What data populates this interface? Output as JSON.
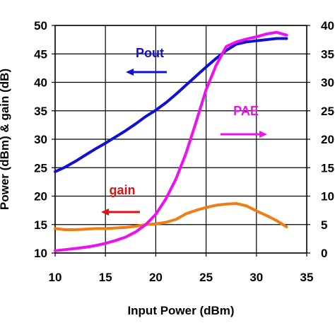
{
  "chart_data": {
    "type": "line",
    "xlabel": "Input Power (dBm)",
    "ylabel": "Power (dBm) & gain (dB)",
    "xlim": [
      10,
      35
    ],
    "ylim": [
      10,
      50
    ],
    "ylim_right": [
      0,
      40
    ],
    "x_ticks": [
      "10",
      "15",
      "20",
      "25",
      "30",
      "35"
    ],
    "y_ticks": [
      "10",
      "15",
      "20",
      "25",
      "30",
      "35",
      "40",
      "45",
      "50"
    ],
    "y2_ticks": [
      "0",
      "5",
      "10",
      "15",
      "20",
      "25",
      "30",
      "35",
      "40"
    ],
    "grid": true,
    "series": [
      {
        "name": "Pout",
        "axis": "left",
        "color": "#1010d0",
        "x": [
          10,
          11,
          12,
          13,
          14,
          15,
          16,
          17,
          18,
          19,
          20,
          21,
          22,
          23,
          24,
          25,
          26,
          27,
          28,
          29,
          30,
          31,
          32,
          33
        ],
        "y": [
          24.3,
          25.1,
          26.1,
          27.2,
          28.3,
          29.3,
          30.4,
          31.5,
          32.7,
          34.0,
          35.1,
          36.4,
          37.9,
          39.5,
          41.1,
          42.7,
          44.2,
          45.6,
          46.7,
          47.1,
          47.3,
          47.5,
          47.7,
          47.7
        ]
      },
      {
        "name": "gain",
        "axis": "left",
        "color": "#f07d14",
        "x": [
          10,
          11,
          12,
          13,
          14,
          15,
          16,
          17,
          18,
          19,
          20,
          21,
          22,
          23,
          24,
          25,
          26,
          27,
          28,
          29,
          30,
          31,
          32,
          33
        ],
        "y": [
          14.3,
          14.1,
          14.1,
          14.2,
          14.3,
          14.3,
          14.4,
          14.5,
          14.7,
          15.0,
          15.1,
          15.4,
          15.9,
          16.9,
          17.5,
          18.0,
          18.4,
          18.6,
          18.7,
          18.3,
          17.4,
          16.6,
          15.7,
          14.6
        ]
      },
      {
        "name": "PAE",
        "axis": "right",
        "color": "#ee10ee",
        "x": [
          10,
          11,
          12,
          13,
          14,
          15,
          16,
          17,
          18,
          19,
          20,
          21,
          22,
          23,
          24,
          25,
          26,
          27,
          28,
          29,
          30,
          31,
          32,
          33
        ],
        "y": [
          0.4,
          0.6,
          0.8,
          1.0,
          1.3,
          1.7,
          2.2,
          2.8,
          3.7,
          5.0,
          6.8,
          9.5,
          13.0,
          17.5,
          23.0,
          28.7,
          33.0,
          36.3,
          37.1,
          37.6,
          38.0,
          38.5,
          38.8,
          38.3
        ]
      }
    ],
    "annotations": [
      {
        "text": "Pout",
        "color": "#1010d0",
        "arrow": "left"
      },
      {
        "text": "PAE",
        "color": "#ee10ee",
        "arrow": "right"
      },
      {
        "text": "gain",
        "color": "#e01010",
        "arrow": "left"
      }
    ]
  }
}
